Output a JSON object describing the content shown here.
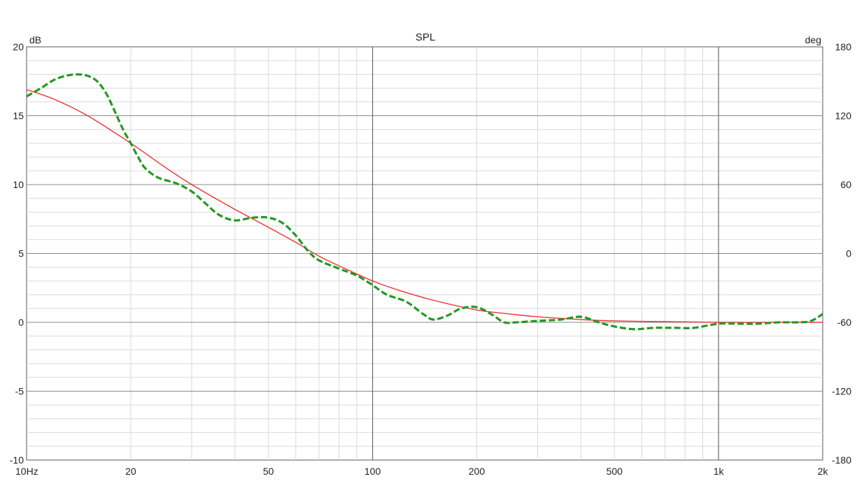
{
  "chart_data": {
    "type": "line",
    "title": "SPL",
    "ylabel_left": "dB",
    "ylabel_right": "deg",
    "xscale": "log",
    "xlim": [
      10,
      2000
    ],
    "ylim": [
      -10,
      20
    ],
    "y2lim": [
      -180,
      180
    ],
    "grid": true,
    "x_tick_labels": [
      {
        "value": 10,
        "label": "10Hz"
      },
      {
        "value": 20,
        "label": "20"
      },
      {
        "value": 50,
        "label": "50"
      },
      {
        "value": 100,
        "label": "100"
      },
      {
        "value": 200,
        "label": "200"
      },
      {
        "value": 500,
        "label": "500"
      },
      {
        "value": 1000,
        "label": "1k"
      },
      {
        "value": 2000,
        "label": "2k"
      }
    ],
    "y_tick_labels": [
      {
        "value": 20,
        "label": "20"
      },
      {
        "value": 15,
        "label": "15"
      },
      {
        "value": 10,
        "label": "10"
      },
      {
        "value": 5,
        "label": "5"
      },
      {
        "value": 0,
        "label": "0"
      },
      {
        "value": -5,
        "label": "-5"
      },
      {
        "value": -10,
        "label": "-10"
      }
    ],
    "y2_tick_labels": [
      {
        "value": 180,
        "label": "180"
      },
      {
        "value": 120,
        "label": "120"
      },
      {
        "value": 60,
        "label": "60"
      },
      {
        "value": 0,
        "label": "0"
      },
      {
        "value": -60,
        "label": "-60"
      },
      {
        "value": -120,
        "label": "-120"
      },
      {
        "value": -180,
        "label": "-180"
      }
    ],
    "series": [
      {
        "color": "#ee3333",
        "style": "solid",
        "x": [
          10,
          12,
          15,
          20,
          25,
          30,
          40,
          50,
          60,
          70,
          80,
          100,
          120,
          150,
          200,
          250,
          300,
          400,
          500,
          700,
          1000,
          1500,
          2000
        ],
        "y": [
          16.9,
          16.2,
          15.0,
          13.0,
          11.3,
          10.0,
          8.2,
          6.9,
          5.8,
          4.8,
          4.1,
          3.0,
          2.3,
          1.6,
          0.9,
          0.6,
          0.4,
          0.2,
          0.1,
          0.05,
          0.0,
          0.0,
          0.0
        ]
      },
      {
        "color": "#229922",
        "style": "dashed",
        "x": [
          10,
          11,
          12,
          13,
          14,
          15,
          16,
          17,
          18,
          19,
          20,
          21,
          22,
          24,
          27,
          30,
          33,
          36,
          40,
          45,
          50,
          55,
          60,
          65,
          70,
          80,
          90,
          100,
          110,
          125,
          140,
          150,
          165,
          180,
          200,
          220,
          240,
          260,
          300,
          350,
          400,
          450,
          500,
          570,
          650,
          750,
          850,
          1000,
          1150,
          1300,
          1500,
          1700,
          1850,
          2000
        ],
        "y": [
          16.4,
          17.0,
          17.6,
          17.9,
          18.0,
          17.9,
          17.5,
          16.6,
          15.3,
          14.0,
          13.0,
          12.0,
          11.2,
          10.5,
          10.1,
          9.5,
          8.6,
          7.8,
          7.4,
          7.6,
          7.6,
          7.2,
          6.3,
          5.2,
          4.5,
          3.9,
          3.4,
          2.7,
          2.0,
          1.5,
          0.6,
          0.2,
          0.5,
          1.0,
          1.1,
          0.6,
          0.0,
          0.0,
          0.1,
          0.2,
          0.4,
          0.0,
          -0.3,
          -0.5,
          -0.4,
          -0.4,
          -0.4,
          -0.1,
          -0.1,
          -0.1,
          0.0,
          0.0,
          0.1,
          0.6
        ]
      }
    ]
  }
}
